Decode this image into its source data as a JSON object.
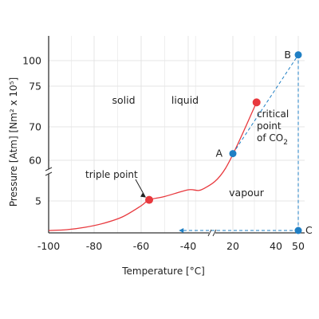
{
  "chart_data": {
    "type": "line",
    "xlabel": "Temperature [°C]",
    "ylabel": "Pressure [Atm] [Nm² x 10⁵]",
    "x_axis_breaks": true,
    "y_axis_breaks": true,
    "grid": true,
    "x_ticks": [
      "-100",
      "-80",
      "-60",
      "-40",
      "20",
      "40",
      "50"
    ],
    "y_ticks": [
      "100",
      "75",
      "70",
      "60",
      "5"
    ],
    "regions": [
      "solid",
      "liquid",
      "vapour"
    ],
    "series": [
      {
        "name": "",
        "color": "#e8383d",
        "points": [
          {
            "x": -100,
            "y": 1.3
          },
          {
            "x": -92,
            "y": 1.4
          },
          {
            "x": -84,
            "y": 1.7
          },
          {
            "x": -76,
            "y": 2.2
          },
          {
            "x": -68,
            "y": 3.0
          },
          {
            "x": -60,
            "y": 4.4
          },
          {
            "x": -56.6,
            "y": 5.1
          },
          {
            "x": -50,
            "y": 5.4
          },
          {
            "x": -40,
            "y": 6.0
          },
          {
            "x": -20,
            "y": 7.5
          },
          {
            "x": 10,
            "y": 45
          },
          {
            "x": 31,
            "y": 73
          }
        ]
      }
    ],
    "annotations": {
      "triple_point": {
        "label": "triple point",
        "x": -56.6,
        "y": 5.1,
        "color": "#e8383d"
      },
      "critical_point": {
        "line1": "critical",
        "line2": "point",
        "line3": "of CO",
        "subscript": "2",
        "x": 31,
        "y": 73,
        "color": "#e8383d"
      }
    },
    "path_points": [
      {
        "label": "A",
        "x": 20,
        "y": 62,
        "color": "#1f7fc4"
      },
      {
        "label": "B",
        "x": 50,
        "y": 104,
        "color": "#1f7fc4"
      },
      {
        "label": "C",
        "x": 50,
        "y": 1.3,
        "color": "#1f7fc4"
      }
    ],
    "path": {
      "sequence": [
        "A",
        "B",
        "C"
      ],
      "style": "dashed",
      "color": "#1f7fc4",
      "arrow_toward": "-100"
    }
  }
}
